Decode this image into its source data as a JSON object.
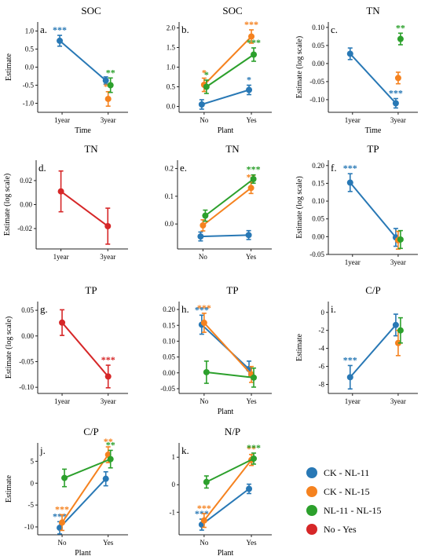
{
  "colors": {
    "blue": "#2878b5",
    "orange": "#f5821f",
    "green": "#2ca02c",
    "red": "#d62728",
    "axis": "#222222"
  },
  "legend": [
    {
      "label": "CK - NL-11",
      "color": "#2878b5"
    },
    {
      "label": "CK - NL-15",
      "color": "#f5821f"
    },
    {
      "label": "NL-11 - NL-15",
      "color": "#2ca02c"
    },
    {
      "label": "No - Yes",
      "color": "#d62728"
    }
  ],
  "chart_data": [
    {
      "panel": "a.",
      "type": "line",
      "title": "SOC",
      "xlabel": "Time",
      "ylabel": "Estimate",
      "categories": [
        "1year",
        "3year"
      ],
      "ylim": [
        -1.25,
        1.25
      ],
      "yticks": [
        1.0,
        0.5,
        0.0,
        -0.5,
        -1.0
      ],
      "ytick_labels": [
        "1.0",
        "0.5",
        "0.0",
        "-0.5",
        "-1.0"
      ],
      "series": [
        {
          "color": "blue",
          "values": [
            0.73,
            -0.37
          ],
          "err": [
            0.15,
            0.1
          ],
          "line": true,
          "labels": [
            "***",
            ""
          ]
        },
        {
          "color": "orange",
          "values": [
            null,
            -0.88
          ],
          "err": [
            0,
            0.2
          ],
          "line": false,
          "labels": [
            "",
            "**"
          ]
        },
        {
          "color": "green",
          "values": [
            null,
            -0.5
          ],
          "err": [
            0,
            0.2
          ],
          "line": false,
          "labels": [
            "",
            "**"
          ]
        }
      ]
    },
    {
      "panel": "b.",
      "type": "line",
      "title": "SOC",
      "xlabel": "Plant",
      "ylabel": "",
      "categories": [
        "No",
        "Yes"
      ],
      "ylim": [
        -0.15,
        2.15
      ],
      "yticks": [
        2.0,
        1.5,
        1.0,
        0.5,
        0.0
      ],
      "ytick_labels": [
        "2.0",
        "1.5",
        "1.0",
        "0.5",
        "0.0"
      ],
      "series": [
        {
          "color": "blue",
          "values": [
            0.05,
            0.42
          ],
          "err": [
            0.12,
            0.12
          ],
          "line": true,
          "labels": [
            "",
            "*"
          ]
        },
        {
          "color": "orange",
          "values": [
            0.55,
            1.78
          ],
          "err": [
            0.17,
            0.17
          ],
          "line": true,
          "labels": [
            "*",
            "***"
          ]
        },
        {
          "color": "green",
          "values": [
            0.5,
            1.32
          ],
          "err": [
            0.17,
            0.17
          ],
          "line": true,
          "labels": [
            "*",
            "***"
          ]
        }
      ]
    },
    {
      "panel": "c.",
      "type": "line",
      "title": "TN",
      "xlabel": "Time",
      "ylabel": "Estimate (log scale)",
      "categories": [
        "1year",
        "3year"
      ],
      "ylim": [
        -0.135,
        0.115
      ],
      "yticks": [
        0.1,
        0.05,
        0.0,
        -0.05,
        -0.1
      ],
      "ytick_labels": [
        "0.10",
        "0.05",
        "0.00",
        "-0.05",
        "-0.10"
      ],
      "series": [
        {
          "color": "blue",
          "values": [
            0.027,
            -0.11
          ],
          "err": [
            0.016,
            0.013
          ],
          "line": true,
          "labels": [
            "",
            "***"
          ]
        },
        {
          "color": "orange",
          "values": [
            null,
            -0.04
          ],
          "err": [
            0,
            0.016
          ],
          "line": false,
          "labels": [
            "",
            ""
          ]
        },
        {
          "color": "green",
          "values": [
            null,
            0.068
          ],
          "err": [
            0,
            0.016
          ],
          "line": false,
          "labels": [
            "",
            "**"
          ]
        }
      ]
    },
    {
      "panel": "d.",
      "type": "line",
      "title": "TN",
      "xlabel": "",
      "ylabel": "Estimate (log scale)",
      "categories": [
        "1year",
        "3year"
      ],
      "ylim": [
        -0.037,
        0.037
      ],
      "yticks": [
        0.02,
        0.0,
        -0.02
      ],
      "ytick_labels": [
        "0.02",
        "0.00",
        "-0.02"
      ],
      "series": [
        {
          "color": "red",
          "values": [
            0.011,
            -0.018
          ],
          "err": [
            0.017,
            0.015
          ],
          "line": true,
          "labels": [
            "",
            ""
          ]
        }
      ]
    },
    {
      "panel": "e.",
      "type": "line",
      "title": "TN",
      "xlabel": "",
      "ylabel": "",
      "categories": [
        "No",
        "Yes"
      ],
      "ylim": [
        -0.09,
        0.23
      ],
      "yticks": [
        0.2,
        0.1,
        0.0
      ],
      "ytick_labels": [
        "0.2",
        "0.1",
        "0.0"
      ],
      "series": [
        {
          "color": "blue",
          "values": [
            -0.045,
            -0.04
          ],
          "err": [
            0.016,
            0.016
          ],
          "line": true,
          "labels": [
            "",
            ""
          ]
        },
        {
          "color": "orange",
          "values": [
            -0.005,
            0.13
          ],
          "err": [
            0.02,
            0.02
          ],
          "line": true,
          "labels": [
            "",
            "**"
          ]
        },
        {
          "color": "green",
          "values": [
            0.03,
            0.162
          ],
          "err": [
            0.02,
            0.015
          ],
          "line": true,
          "labels": [
            "",
            "***"
          ]
        }
      ]
    },
    {
      "panel": "f.",
      "type": "line",
      "title": "TP",
      "xlabel": "",
      "ylabel": "Estimate (log scale)",
      "categories": [
        "1year",
        "3year"
      ],
      "ylim": [
        -0.05,
        0.215
      ],
      "yticks": [
        0.2,
        0.15,
        0.1,
        0.05,
        0.0,
        -0.05
      ],
      "ytick_labels": [
        "0.20",
        "0.15",
        "0.10",
        "0.05",
        "0.00",
        "-0.05"
      ],
      "series": [
        {
          "color": "blue",
          "values": [
            0.152,
            -0.002
          ],
          "err": [
            0.025,
            0.025
          ],
          "line": true,
          "labels": [
            "***",
            ""
          ]
        },
        {
          "color": "orange",
          "values": [
            null,
            -0.01
          ],
          "err": [
            0,
            0.025
          ],
          "line": false,
          "labels": [
            "",
            ""
          ]
        },
        {
          "color": "green",
          "values": [
            null,
            -0.008
          ],
          "err": [
            0,
            0.025
          ],
          "line": false,
          "labels": [
            "",
            ""
          ]
        }
      ]
    },
    {
      "panel": "g.",
      "type": "line",
      "title": "TP",
      "xlabel": "",
      "ylabel": "Estimate (log scale)",
      "categories": [
        "1year",
        "3year"
      ],
      "ylim": [
        -0.112,
        0.067
      ],
      "yticks": [
        0.05,
        0.0,
        -0.05,
        -0.1
      ],
      "ytick_labels": [
        "0.05",
        "0.00",
        "-0.05",
        "-0.10"
      ],
      "series": [
        {
          "color": "red",
          "values": [
            0.026,
            -0.079
          ],
          "err": [
            0.025,
            0.022
          ],
          "line": true,
          "labels": [
            "",
            "***"
          ]
        }
      ]
    },
    {
      "panel": "h.",
      "type": "line",
      "title": "TP",
      "xlabel": "Plant",
      "ylabel": "",
      "categories": [
        "No",
        "Yes"
      ],
      "ylim": [
        -0.065,
        0.225
      ],
      "yticks": [
        0.2,
        0.15,
        0.1,
        0.05,
        0.0,
        -0.05
      ],
      "ytick_labels": [
        "0.20",
        "0.15",
        "0.10",
        "0.05",
        "0.00",
        "-0.05"
      ],
      "series": [
        {
          "color": "blue",
          "values": [
            0.152,
            0.012
          ],
          "err": [
            0.03,
            0.025
          ],
          "line": true,
          "labels": [
            "***",
            ""
          ]
        },
        {
          "color": "orange",
          "values": [
            0.158,
            -0.005
          ],
          "err": [
            0.03,
            0.025
          ],
          "line": true,
          "labels": [
            "***",
            ""
          ]
        },
        {
          "color": "green",
          "values": [
            0.002,
            -0.015
          ],
          "err": [
            0.035,
            0.03
          ],
          "line": true,
          "labels": [
            "",
            ""
          ]
        }
      ]
    },
    {
      "panel": "i.",
      "type": "line",
      "title": "C/P",
      "xlabel": "",
      "ylabel": "Estimate",
      "categories": [
        "1year",
        "3year"
      ],
      "ylim": [
        -9.0,
        1.2
      ],
      "yticks": [
        0,
        -2,
        -4,
        -6,
        -8
      ],
      "ytick_labels": [
        "0",
        "-2",
        "-4",
        "-6",
        "-8"
      ],
      "series": [
        {
          "color": "blue",
          "values": [
            -7.2,
            -1.4
          ],
          "err": [
            1.3,
            1.2
          ],
          "line": true,
          "labels": [
            "***",
            ""
          ]
        },
        {
          "color": "orange",
          "values": [
            null,
            -3.4
          ],
          "err": [
            0,
            1.4
          ],
          "line": false,
          "labels": [
            "",
            ""
          ]
        },
        {
          "color": "green",
          "values": [
            null,
            -2.0
          ],
          "err": [
            0,
            1.4
          ],
          "line": false,
          "labels": [
            "",
            ""
          ]
        }
      ]
    },
    {
      "panel": "j.",
      "type": "line",
      "title": "C/P",
      "xlabel": "Plant",
      "ylabel": "Estimate",
      "categories": [
        "No",
        "Yes"
      ],
      "ylim": [
        -11.8,
        9.2
      ],
      "yticks": [
        5,
        0,
        -5,
        -10
      ],
      "ytick_labels": [
        "5",
        "0",
        "-5",
        "-10"
      ],
      "series": [
        {
          "color": "blue",
          "values": [
            -10.2,
            1.0
          ],
          "err": [
            1.4,
            1.6
          ],
          "line": true,
          "labels": [
            "***",
            ""
          ]
        },
        {
          "color": "orange",
          "values": [
            -9.0,
            6.5
          ],
          "err": [
            1.8,
            1.8
          ],
          "line": true,
          "labels": [
            "***",
            "**"
          ]
        },
        {
          "color": "green",
          "values": [
            1.2,
            5.5
          ],
          "err": [
            2.0,
            2.0
          ],
          "line": true,
          "labels": [
            "",
            "**"
          ]
        }
      ]
    },
    {
      "panel": "k.",
      "type": "line",
      "title": "N/P",
      "xlabel": "Plant",
      "ylabel": "",
      "categories": [
        "No",
        "Yes"
      ],
      "ylim": [
        -1.82,
        1.52
      ],
      "yticks": [
        1,
        0,
        -1
      ],
      "ytick_labels": [
        "1",
        "0",
        "-1"
      ],
      "series": [
        {
          "color": "blue",
          "values": [
            -1.45,
            -0.15
          ],
          "err": [
            0.2,
            0.17
          ],
          "line": true,
          "labels": [
            "***",
            ""
          ]
        },
        {
          "color": "orange",
          "values": [
            -1.3,
            0.9
          ],
          "err": [
            0.25,
            0.2
          ],
          "line": true,
          "labels": [
            "***",
            "**"
          ]
        },
        {
          "color": "green",
          "values": [
            0.1,
            0.95
          ],
          "err": [
            0.22,
            0.2
          ],
          "line": true,
          "labels": [
            "",
            "***"
          ]
        }
      ]
    }
  ]
}
